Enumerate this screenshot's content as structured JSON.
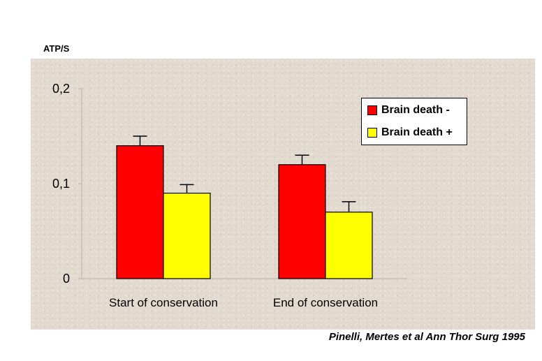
{
  "chart_data": {
    "type": "bar",
    "ylabel": "ATP/S",
    "categories": [
      "Start of conservation",
      "End of conservation"
    ],
    "series": [
      {
        "name": "Brain death -",
        "color": "#ff0000",
        "values": [
          0.14,
          0.12
        ],
        "errors": [
          0.01,
          0.01
        ]
      },
      {
        "name": "Brain death +",
        "color": "#ffff00",
        "values": [
          0.09,
          0.07
        ],
        "errors": [
          0.009,
          0.011
        ]
      }
    ],
    "ylim": [
      0,
      0.2
    ],
    "yticks": [
      {
        "value": 0,
        "label": "0"
      },
      {
        "value": 0.1,
        "label": "0,1"
      },
      {
        "value": 0.2,
        "label": "0,2"
      }
    ],
    "grid": false,
    "legend_position": "top-right",
    "background_color": "#e2d9cf"
  },
  "citation": "Pinelli, Mertes et al Ann Thor Surg 1995"
}
